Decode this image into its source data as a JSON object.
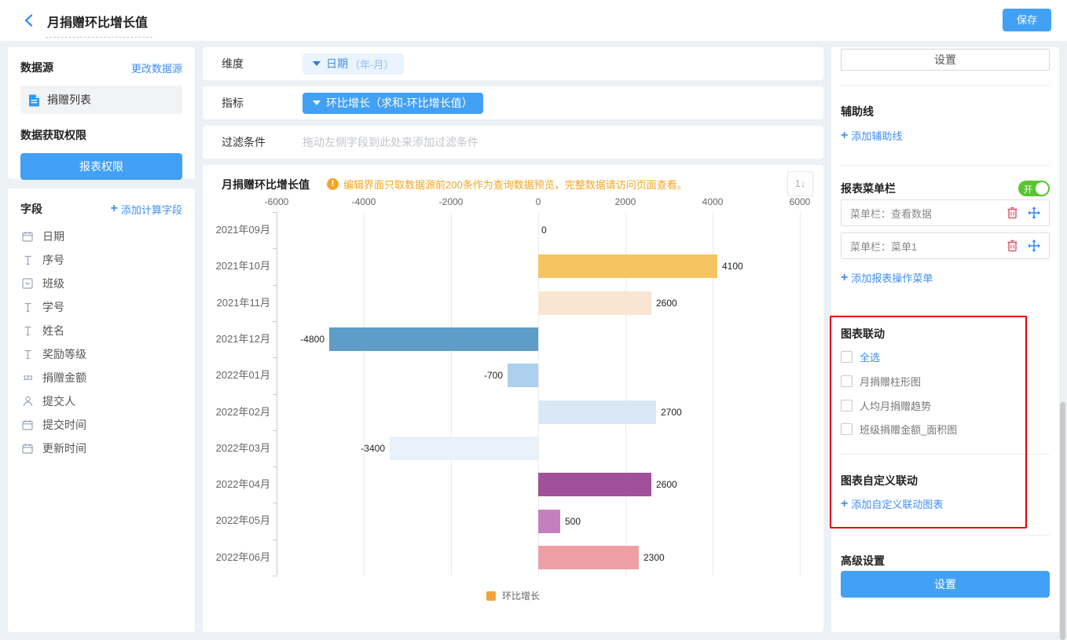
{
  "header": {
    "title": "月捐赠环比增长值",
    "save_label": "保存"
  },
  "sidebar": {
    "datasource": {
      "title": "数据源",
      "change_link": "更改数据源",
      "name": "捐赠列表",
      "permission_title": "数据获取权限",
      "permission_button": "报表权限"
    },
    "fields_section": {
      "title": "字段",
      "add_link": "添加计算字段",
      "fields": [
        {
          "icon": "calendar-icon",
          "label": "日期"
        },
        {
          "icon": "text-icon",
          "label": "序号"
        },
        {
          "icon": "select-icon",
          "label": "班级"
        },
        {
          "icon": "text-icon",
          "label": "学号"
        },
        {
          "icon": "text-icon",
          "label": "姓名"
        },
        {
          "icon": "text-icon",
          "label": "奖励等级"
        },
        {
          "icon": "number-icon",
          "label": "捐赠金额"
        },
        {
          "icon": "person-icon",
          "label": "提交人"
        },
        {
          "icon": "calendar-icon",
          "label": "提交时间"
        },
        {
          "icon": "calendar-icon",
          "label": "更新时间"
        }
      ]
    }
  },
  "config": {
    "dimension_label": "维度",
    "dimension_value": "日期",
    "dimension_suffix": "（年-月）",
    "metric_label": "指标",
    "metric_value": "环比增长（求和-环比增长值）",
    "filter_label": "过滤条件",
    "filter_placeholder": "拖动左侧字段到此处来添加过滤条件"
  },
  "chart_panel": {
    "title": "月捐赠环比增长值",
    "warning": "编辑界面只取数据源前200条作为查询数据预览，完整数据请访问页面查看。",
    "sort_glyph": "1↓"
  },
  "chart_data": {
    "type": "bar",
    "orientation": "horizontal",
    "title": "月捐赠环比增长值",
    "categories": [
      "2021年09月",
      "2021年10月",
      "2021年11月",
      "2021年12月",
      "2022年01月",
      "2022年02月",
      "2022年03月",
      "2022年04月",
      "2022年05月",
      "2022年06月"
    ],
    "values": [
      0,
      4100,
      2600,
      -4800,
      -700,
      2700,
      -3400,
      2600,
      500,
      2300
    ],
    "bar_colors": [
      "#f6c562",
      "#f6c562",
      "#f8e5d2",
      "#5e9dc8",
      "#acd0ee",
      "#dae8f5",
      "#e9f1fa",
      "#a1509b",
      "#c67fbe",
      "#ed9fa5"
    ],
    "xlim": [
      -6000,
      6000
    ],
    "x_ticks": [
      -6000,
      -4000,
      -2000,
      0,
      2000,
      4000,
      6000
    ],
    "grid": true,
    "legend_position": "bottom",
    "legend": [
      {
        "name": "环比增长",
        "color": "#efa53c"
      }
    ]
  },
  "settings_panel": {
    "settings_button": "设置",
    "auxiliary": {
      "title": "辅助线",
      "add_link": "添加辅助线"
    },
    "menu_bar": {
      "title": "报表菜单栏",
      "toggle_state": "开",
      "items": [
        "菜单栏：查看数据",
        "菜单栏：菜单1"
      ],
      "add_link": "添加报表操作菜单"
    },
    "linkage": {
      "title": "图表联动",
      "select_all": "全选",
      "options": [
        "月捐赠柱形图",
        "人均月捐赠趋势",
        "班级捐赠金额_面积图"
      ]
    },
    "custom_linkage": {
      "title": "图表自定义联动",
      "add_link": "添加自定义联动图表"
    },
    "advanced": {
      "title": "高级设置",
      "button": "设置"
    }
  },
  "colors": {
    "accent_blue": "#42a0f5",
    "link_blue": "#3e8ef7",
    "warning_orange": "#f5a623",
    "toggle_green": "#5bc531",
    "highlight_red": "#e60000",
    "trash_red": "#e05c6e"
  }
}
